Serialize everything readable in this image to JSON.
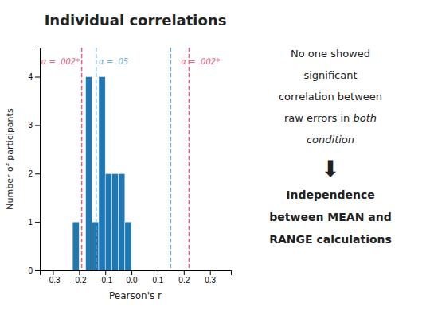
{
  "chart_data": {
    "type": "histogram",
    "title": "Individual correlations",
    "bins": [
      -0.225,
      -0.2,
      -0.175,
      -0.15,
      -0.125,
      -0.1,
      -0.075,
      -0.05,
      -0.025,
      0.0
    ],
    "values": [
      1,
      0,
      4,
      1,
      4,
      2,
      2,
      2,
      1
    ],
    "vlines": [
      {
        "x": -0.19,
        "color": "#e06080",
        "line_style": "dashed"
      },
      {
        "x": 0.22,
        "color": "#e06080",
        "line_style": "dashed"
      },
      {
        "x": -0.135,
        "color": "#70aadd",
        "line_style": "dashed"
      },
      {
        "x": 0.15,
        "color": "#70aadd",
        "line_style": "dashed"
      }
    ],
    "annotations": [
      {
        "text": "α = .002*",
        "x": -0.345,
        "y": 4.25,
        "color": "#e06080"
      },
      {
        "text": "α = .05",
        "x": -0.125,
        "y": 4.25,
        "color": "#70aadd"
      },
      {
        "text": "α = .002*",
        "x": 0.19,
        "y": 4.25,
        "color": "#e06080"
      }
    ],
    "text_block": [
      [
        {
          "text": "No one showed"
        }
      ],
      [
        {
          "text": "significant"
        }
      ],
      [
        {
          "text": "correlation between"
        }
      ],
      [
        {
          "text": "raw errors in "
        },
        {
          "text": "both",
          "style": "italic"
        }
      ],
      [
        {
          "text": "condition",
          "style": "italic"
        }
      ],
      [
        {
          "text": "⬇",
          "style": "symbol"
        }
      ],
      [
        {
          "text": "Independence",
          "style": "bold"
        }
      ],
      [
        {
          "text": "between MEAN and",
          "style": "bold"
        }
      ],
      [
        {
          "text": "RANGE calculations",
          "style": "bold"
        }
      ]
    ],
    "x_label": "Pearson's r",
    "y_label": "Number of participants",
    "xlim": [
      -0.35,
      0.38
    ],
    "ylim": [
      0,
      4.6
    ],
    "xticks": [
      -0.3,
      -0.2,
      -0.1,
      {
        "value": 0.0,
        "label": "0.0"
      },
      0.1,
      0.2,
      0.3
    ],
    "yticks": [
      0,
      1,
      2,
      3,
      4
    ],
    "grid": false
  }
}
